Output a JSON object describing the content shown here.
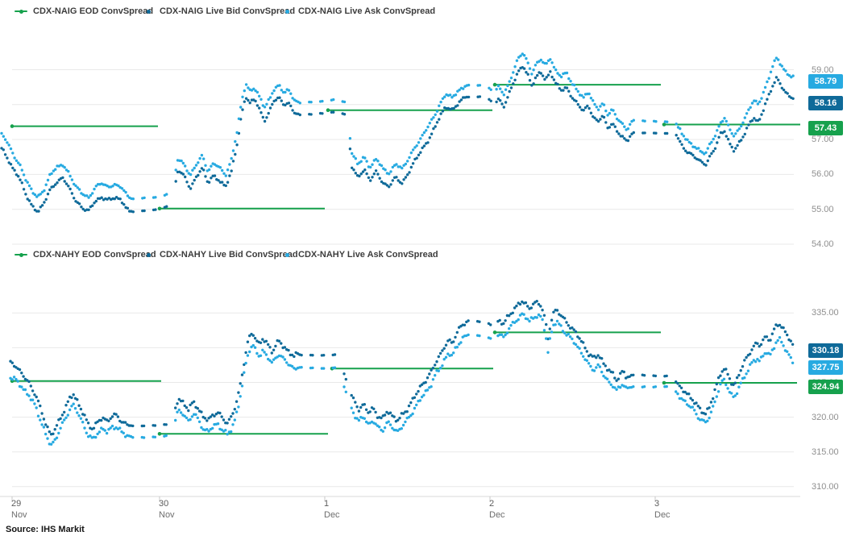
{
  "source_note": "Source: IHS Markit",
  "colors": {
    "eod": "#16a14d",
    "bid": "#0f6a99",
    "ask": "#27aae1"
  },
  "x_axis": {
    "ticks": [
      {
        "x": 15,
        "day": "29",
        "month": "Nov"
      },
      {
        "x": 198,
        "day": "30",
        "month": "Nov"
      },
      {
        "x": 403,
        "day": "1",
        "month": "Dec"
      },
      {
        "x": 608,
        "day": "2",
        "month": "Dec"
      },
      {
        "x": 813,
        "day": "3",
        "month": "Dec"
      }
    ]
  },
  "market_gaps": [
    [
      162,
      216
    ],
    [
      370,
      434
    ],
    [
      578,
      616
    ],
    [
      782,
      842
    ]
  ],
  "chart_data": [
    {
      "type": "scatter",
      "instrument": "CDX-NAIG",
      "legend": [
        {
          "series": "eod",
          "label": "CDX-NAIG EOD ConvSpread"
        },
        {
          "series": "bid",
          "label": "CDX-NAIG Live Bid ConvSpread"
        },
        {
          "series": "ask",
          "label": "CDX-NAIG Live Ask ConvSpread"
        }
      ],
      "ylim": [
        54,
        59.6
      ],
      "y_ticks": [
        {
          "v": 59,
          "label": "59.00"
        },
        {
          "v": 58,
          "label": "58.00"
        },
        {
          "v": 57,
          "label": "57.00"
        },
        {
          "v": 56,
          "label": "56.00"
        },
        {
          "v": 55,
          "label": "55.00"
        },
        {
          "v": 54,
          "label": "54.00"
        }
      ],
      "badges": [
        {
          "series": "ask",
          "label": "58.79",
          "v": 58.79
        },
        {
          "series": "bid",
          "label": "58.16",
          "v": 58.16
        },
        {
          "series": "eod",
          "label": "57.43",
          "v": 57.43
        }
      ],
      "eod_segments": [
        [
          13,
          196,
          57.38
        ],
        [
          196,
          403,
          55.02
        ],
        [
          405,
          611,
          57.84
        ],
        [
          612,
          820,
          58.57
        ],
        [
          822,
          993,
          57.43
        ]
      ],
      "primary_series": "ask",
      "derived_series": "bid",
      "jitter": 0.055,
      "primary_points": [
        [
          2,
          57.15
        ],
        [
          8,
          56.95
        ],
        [
          16,
          56.6
        ],
        [
          24,
          56.3
        ],
        [
          32,
          55.85
        ],
        [
          40,
          55.5
        ],
        [
          47,
          55.35
        ],
        [
          54,
          55.55
        ],
        [
          62,
          55.95
        ],
        [
          70,
          56.2
        ],
        [
          78,
          56.3
        ],
        [
          86,
          56.0
        ],
        [
          94,
          55.65
        ],
        [
          102,
          55.45
        ],
        [
          110,
          55.35
        ],
        [
          118,
          55.6
        ],
        [
          126,
          55.75
        ],
        [
          134,
          55.65
        ],
        [
          142,
          55.7
        ],
        [
          150,
          55.65
        ],
        [
          157,
          55.4
        ],
        [
          164,
          55.3
        ],
        [
          200,
          55.35
        ],
        [
          213,
          55.5
        ],
        [
          221,
          56.5
        ],
        [
          228,
          56.3
        ],
        [
          236,
          55.95
        ],
        [
          244,
          56.3
        ],
        [
          251,
          56.55
        ],
        [
          258,
          56.1
        ],
        [
          265,
          56.3
        ],
        [
          272,
          56.2
        ],
        [
          280,
          56.0
        ],
        [
          287,
          56.4
        ],
        [
          294,
          57.2
        ],
        [
          300,
          58.1
        ],
        [
          305,
          58.6
        ],
        [
          310,
          58.4
        ],
        [
          316,
          58.5
        ],
        [
          322,
          58.2
        ],
        [
          328,
          57.9
        ],
        [
          334,
          58.15
        ],
        [
          340,
          58.45
        ],
        [
          346,
          58.55
        ],
        [
          352,
          58.35
        ],
        [
          358,
          58.4
        ],
        [
          365,
          58.15
        ],
        [
          372,
          58.05
        ],
        [
          400,
          58.1
        ],
        [
          418,
          58.15
        ],
        [
          431,
          58.05
        ],
        [
          436,
          56.6
        ],
        [
          444,
          56.3
        ],
        [
          452,
          56.5
        ],
        [
          459,
          56.2
        ],
        [
          467,
          56.45
        ],
        [
          475,
          56.15
        ],
        [
          483,
          56.05
        ],
        [
          491,
          56.3
        ],
        [
          499,
          56.15
        ],
        [
          507,
          56.45
        ],
        [
          515,
          56.8
        ],
        [
          523,
          57.05
        ],
        [
          531,
          57.35
        ],
        [
          539,
          57.7
        ],
        [
          547,
          58.05
        ],
        [
          553,
          58.3
        ],
        [
          561,
          58.2
        ],
        [
          569,
          58.4
        ],
        [
          577,
          58.55
        ],
        [
          603,
          58.55
        ],
        [
          613,
          58.35
        ],
        [
          619,
          58.5
        ],
        [
          625,
          58.3
        ],
        [
          631,
          58.6
        ],
        [
          637,
          58.95
        ],
        [
          643,
          59.3
        ],
        [
          649,
          59.5
        ],
        [
          655,
          59.2
        ],
        [
          660,
          58.9
        ],
        [
          665,
          59.15
        ],
        [
          671,
          59.3
        ],
        [
          677,
          59.1
        ],
        [
          683,
          59.35
        ],
        [
          689,
          59.0
        ],
        [
          696,
          58.8
        ],
        [
          703,
          58.9
        ],
        [
          710,
          58.6
        ],
        [
          717,
          58.4
        ],
        [
          724,
          58.2
        ],
        [
          730,
          58.35
        ],
        [
          736,
          58.05
        ],
        [
          742,
          57.9
        ],
        [
          748,
          58.05
        ],
        [
          754,
          57.7
        ],
        [
          760,
          57.85
        ],
        [
          766,
          57.6
        ],
        [
          772,
          57.45
        ],
        [
          778,
          57.3
        ],
        [
          785,
          57.55
        ],
        [
          838,
          57.5
        ],
        [
          846,
          57.15
        ],
        [
          854,
          56.95
        ],
        [
          862,
          56.8
        ],
        [
          870,
          56.65
        ],
        [
          876,
          56.6
        ],
        [
          882,
          56.9
        ],
        [
          888,
          57.15
        ],
        [
          894,
          57.5
        ],
        [
          899,
          57.6
        ],
        [
          905,
          57.3
        ],
        [
          911,
          57.1
        ],
        [
          917,
          57.3
        ],
        [
          923,
          57.55
        ],
        [
          929,
          57.85
        ],
        [
          935,
          58.1
        ],
        [
          941,
          58.0
        ],
        [
          947,
          58.35
        ],
        [
          953,
          58.7
        ],
        [
          959,
          59.1
        ],
        [
          964,
          59.35
        ],
        [
          969,
          59.15
        ],
        [
          974,
          58.95
        ],
        [
          980,
          58.85
        ],
        [
          985,
          58.79
        ]
      ],
      "derived_offsets": [
        [
          2,
          0.42
        ],
        [
          100,
          0.4
        ],
        [
          200,
          0.35
        ],
        [
          430,
          0.35
        ],
        [
          500,
          0.4
        ],
        [
          600,
          0.32
        ],
        [
          700,
          0.4
        ],
        [
          800,
          0.35
        ],
        [
          870,
          0.3
        ],
        [
          930,
          0.45
        ],
        [
          985,
          0.63
        ]
      ]
    },
    {
      "type": "scatter",
      "instrument": "CDX-NAHY",
      "legend": [
        {
          "series": "eod",
          "label": "CDX-NAHY EOD ConvSpread"
        },
        {
          "series": "bid",
          "label": "CDX-NAHY Live Bid ConvSpread"
        },
        {
          "series": "ask",
          "label": "CDX-NAHY Live Ask ConvSpread"
        }
      ],
      "ylim": [
        310,
        337
      ],
      "y_ticks": [
        {
          "v": 335,
          "label": "335.00"
        },
        {
          "v": 330,
          "label": "330.00"
        },
        {
          "v": 325,
          "label": "325.00"
        },
        {
          "v": 320,
          "label": "320.00"
        },
        {
          "v": 315,
          "label": "315.00"
        },
        {
          "v": 310,
          "label": "310.00"
        }
      ],
      "badges": [
        {
          "series": "bid",
          "label": "330.18",
          "v": 330.18
        },
        {
          "series": "ask",
          "label": "327.75",
          "v": 327.75
        },
        {
          "series": "eod",
          "label": "324.94",
          "v": 324.94
        }
      ],
      "eod_segments": [
        [
          13,
          200,
          325.2
        ],
        [
          196,
          407,
          317.6
        ],
        [
          410,
          612,
          327.0
        ],
        [
          612,
          820,
          332.2
        ],
        [
          822,
          989,
          324.94
        ]
      ],
      "primary_series": "bid",
      "derived_series": "ask",
      "jitter": 0.4,
      "primary_points": [
        [
          13,
          327.8
        ],
        [
          20,
          327.2
        ],
        [
          28,
          326.2
        ],
        [
          36,
          325.0
        ],
        [
          44,
          323.2
        ],
        [
          50,
          321.2
        ],
        [
          57,
          319.0
        ],
        [
          63,
          317.6
        ],
        [
          69,
          318.3
        ],
        [
          75,
          319.8
        ],
        [
          81,
          321.2
        ],
        [
          87,
          322.9
        ],
        [
          91,
          323.4
        ],
        [
          97,
          322.1
        ],
        [
          103,
          320.5
        ],
        [
          109,
          318.9
        ],
        [
          115,
          318.4
        ],
        [
          121,
          319.4
        ],
        [
          127,
          319.9
        ],
        [
          133,
          319.3
        ],
        [
          139,
          320.1
        ],
        [
          145,
          320.3
        ],
        [
          151,
          319.5
        ],
        [
          158,
          318.9
        ],
        [
          165,
          318.7
        ],
        [
          200,
          318.8
        ],
        [
          213,
          319.2
        ],
        [
          221,
          322.5
        ],
        [
          228,
          322.0
        ],
        [
          234,
          321.2
        ],
        [
          240,
          322.3
        ],
        [
          246,
          321.2
        ],
        [
          252,
          319.9
        ],
        [
          258,
          319.6
        ],
        [
          264,
          320.4
        ],
        [
          270,
          320.8
        ],
        [
          276,
          319.7
        ],
        [
          282,
          319.1
        ],
        [
          287,
          320.0
        ],
        [
          292,
          321.6
        ],
        [
          297,
          324.0
        ],
        [
          302,
          327.2
        ],
        [
          306,
          330.0
        ],
        [
          310,
          331.5
        ],
        [
          314,
          332.0
        ],
        [
          318,
          331.2
        ],
        [
          322,
          330.6
        ],
        [
          326,
          331.4
        ],
        [
          330,
          330.8
        ],
        [
          334,
          330.0
        ],
        [
          338,
          329.3
        ],
        [
          342,
          330.3
        ],
        [
          346,
          331.0
        ],
        [
          350,
          330.5
        ],
        [
          355,
          329.9
        ],
        [
          360,
          329.2
        ],
        [
          365,
          328.7
        ],
        [
          370,
          329.0
        ],
        [
          400,
          328.9
        ],
        [
          418,
          329.0
        ],
        [
          427,
          326.2
        ],
        [
          433,
          324.2
        ],
        [
          439,
          322.5
        ],
        [
          445,
          321.1
        ],
        [
          451,
          321.8
        ],
        [
          457,
          320.6
        ],
        [
          463,
          321.3
        ],
        [
          469,
          320.3
        ],
        [
          475,
          319.8
        ],
        [
          481,
          320.8
        ],
        [
          487,
          320.1
        ],
        [
          493,
          319.6
        ],
        [
          499,
          320.4
        ],
        [
          505,
          321.1
        ],
        [
          511,
          322.1
        ],
        [
          517,
          323.4
        ],
        [
          523,
          324.7
        ],
        [
          529,
          325.5
        ],
        [
          535,
          326.4
        ],
        [
          541,
          327.9
        ],
        [
          547,
          329.1
        ],
        [
          552,
          330.3
        ],
        [
          557,
          331.2
        ],
        [
          561,
          330.7
        ],
        [
          565,
          331.6
        ],
        [
          569,
          332.4
        ],
        [
          575,
          333.4
        ],
        [
          581,
          333.9
        ],
        [
          603,
          333.6
        ],
        [
          613,
          333.1
        ],
        [
          619,
          334.0
        ],
        [
          625,
          333.3
        ],
        [
          631,
          334.5
        ],
        [
          637,
          335.5
        ],
        [
          643,
          336.3
        ],
        [
          648,
          336.7
        ],
        [
          653,
          336.1
        ],
        [
          657,
          335.6
        ],
        [
          662,
          336.2
        ],
        [
          667,
          336.6
        ],
        [
          672,
          336.2
        ],
        [
          677,
          333.8
        ],
        [
          680,
          331.2
        ],
        [
          683,
          333.2
        ],
        [
          687,
          334.9
        ],
        [
          691,
          335.5
        ],
        [
          696,
          334.8
        ],
        [
          701,
          334.0
        ],
        [
          707,
          333.1
        ],
        [
          713,
          332.3
        ],
        [
          719,
          331.3
        ],
        [
          725,
          330.3
        ],
        [
          731,
          329.2
        ],
        [
          737,
          328.4
        ],
        [
          743,
          328.9
        ],
        [
          749,
          327.7
        ],
        [
          755,
          326.9
        ],
        [
          761,
          326.2
        ],
        [
          765,
          325.4
        ],
        [
          769,
          325.9
        ],
        [
          773,
          326.5
        ],
        [
          777,
          325.7
        ],
        [
          785,
          326.1
        ],
        [
          832,
          325.9
        ],
        [
          839,
          325.1
        ],
        [
          846,
          324.2
        ],
        [
          853,
          323.2
        ],
        [
          860,
          322.4
        ],
        [
          868,
          321.2
        ],
        [
          875,
          320.6
        ],
        [
          880,
          321.4
        ],
        [
          885,
          322.9
        ],
        [
          890,
          324.8
        ],
        [
          895,
          326.6
        ],
        [
          899,
          327.2
        ],
        [
          903,
          326.2
        ],
        [
          907,
          325.1
        ],
        [
          911,
          324.5
        ],
        [
          915,
          325.5
        ],
        [
          919,
          326.7
        ],
        [
          924,
          328.0
        ],
        [
          929,
          329.1
        ],
        [
          934,
          330.2
        ],
        [
          939,
          330.6
        ],
        [
          943,
          330.1
        ],
        [
          947,
          331.0
        ],
        [
          951,
          331.6
        ],
        [
          955,
          331.1
        ],
        [
          959,
          332.2
        ],
        [
          963,
          333.2
        ],
        [
          967,
          333.5
        ],
        [
          971,
          332.8
        ],
        [
          975,
          332.0
        ],
        [
          980,
          331.1
        ],
        [
          985,
          330.18
        ]
      ],
      "derived_offsets": [
        [
          13,
          2.1
        ],
        [
          60,
          1.5
        ],
        [
          150,
          1.6
        ],
        [
          300,
          1.7
        ],
        [
          400,
          1.9
        ],
        [
          500,
          1.6
        ],
        [
          580,
          2.0
        ],
        [
          650,
          1.9
        ],
        [
          720,
          1.6
        ],
        [
          800,
          1.7
        ],
        [
          870,
          1.3
        ],
        [
          930,
          2.1
        ],
        [
          985,
          2.43
        ]
      ]
    }
  ]
}
